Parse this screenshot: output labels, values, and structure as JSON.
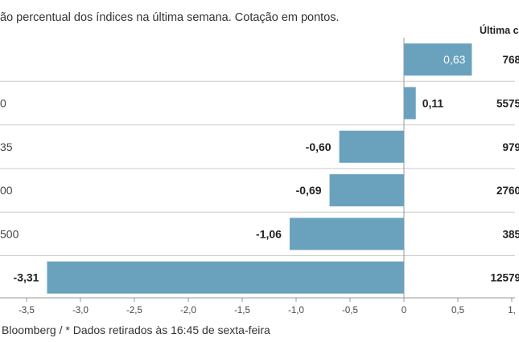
{
  "subtitle": "ão percentual dos índices na última semana. Cotação em pontos.",
  "column_header": "Última c",
  "source": "Bloomberg / * Dados retirados às 16:45 de sexta-feira",
  "colors": {
    "bar": "#6aa2be",
    "grid": "#cccccc",
    "axis": "#999999"
  },
  "chart_data": {
    "type": "bar",
    "orientation": "horizontal",
    "categories": [
      "",
      "0",
      "35",
      "00",
      "500",
      ""
    ],
    "values": [
      0.63,
      0.11,
      -0.6,
      -0.69,
      -1.06,
      -3.31
    ],
    "value_labels": [
      "0,63",
      "0,11",
      "-0,60",
      "-0,69",
      "-1,06",
      "-3,31"
    ],
    "last_values": [
      "768",
      "5575",
      "979",
      "2760",
      "385",
      "12579"
    ],
    "xlim": [
      -3.75,
      1.0
    ],
    "xticks": [
      -3.5,
      -3.0,
      -2.5,
      -2.0,
      -1.5,
      -1.0,
      -0.5,
      0,
      0.5,
      1.0
    ],
    "xtick_labels": [
      "-3,5",
      "-3,0",
      "-2,5",
      "-2,0",
      "-1,5",
      "-1,0",
      "-0,5",
      "0",
      "0,5",
      "1,"
    ],
    "grid": "horizontal row separators"
  }
}
